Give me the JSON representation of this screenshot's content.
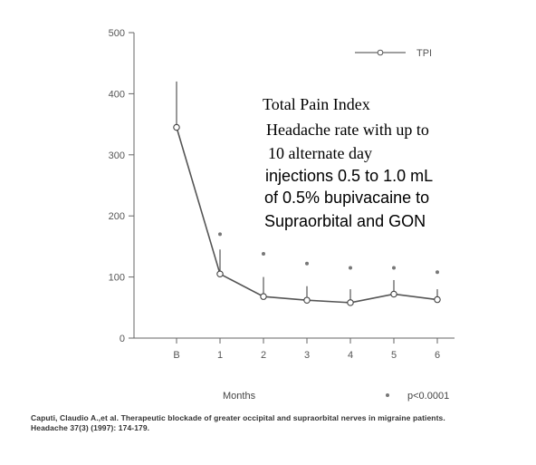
{
  "chart_data": {
    "type": "line",
    "categories": [
      "B",
      "1",
      "2",
      "3",
      "4",
      "5",
      "6"
    ],
    "xlabel": "Months",
    "ylabel": "",
    "ylim": [
      0,
      500
    ],
    "yticks": [
      "0",
      "100",
      "200",
      "300",
      "400",
      "500"
    ],
    "series": [
      {
        "name": "TPI",
        "values": [
          345,
          105,
          68,
          62,
          58,
          72,
          63
        ],
        "error_upper": [
          420,
          145,
          100,
          85,
          80,
          95,
          80
        ]
      }
    ],
    "significance_markers": [
      170,
      138,
      122,
      115,
      115,
      108
    ],
    "significance_label": "p<0.0001",
    "grid": false,
    "legend": "top-right"
  },
  "annotation": {
    "title": "Total Pain Index",
    "lines": [
      "Headache rate with up to",
      "10 alternate day",
      "injections 0.5 to 1.0 mL",
      "of 0.5% bupivacaine to",
      "Supraorbital and GON"
    ]
  },
  "citation": {
    "line1": "Caputi, Claudio A.,et al. Therapeutic blockade of greater occipital and supraorbital nerves in migraine patients.",
    "line2": "Headache 37(3) (1997): 174-179."
  }
}
